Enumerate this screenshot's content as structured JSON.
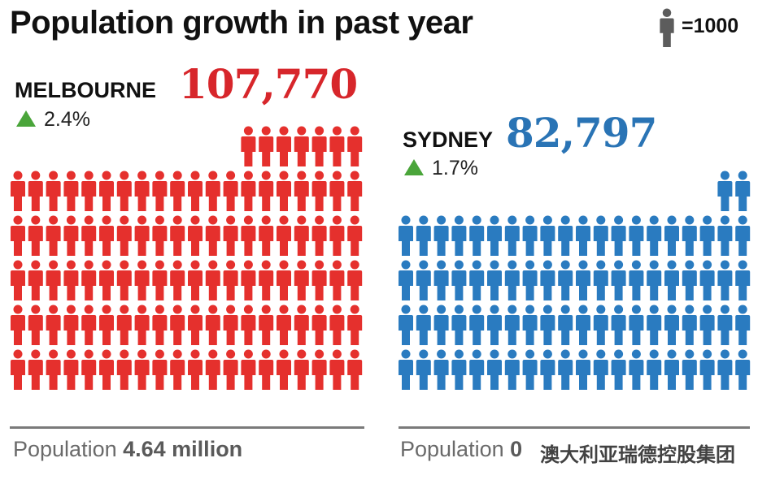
{
  "title": "Population growth in past year",
  "legend": {
    "icon": "person-icon",
    "label": "=1000",
    "icon_color": "#5c5c5c"
  },
  "chart_data": {
    "type": "pictogram",
    "title": "Population growth in past year",
    "unit_per_icon": 1000,
    "icons_per_row": 20,
    "series": [
      {
        "name": "MELBOURNE",
        "value": 107770,
        "value_label": "107,770",
        "change": "2.4%",
        "icons": 107,
        "color": "#e5302d",
        "label_color": "#d7262b",
        "population_label": "Population",
        "population_value": "4.64 million"
      },
      {
        "name": "SYDNEY",
        "value": 82797,
        "value_label": "82,797",
        "change": "1.7%",
        "icons": 82,
        "color": "#2a7bc0",
        "label_color": "#2a74b5",
        "population_label": "Population",
        "population_value": "0"
      }
    ]
  },
  "watermark": "澳大利亚瑞德控股集团"
}
